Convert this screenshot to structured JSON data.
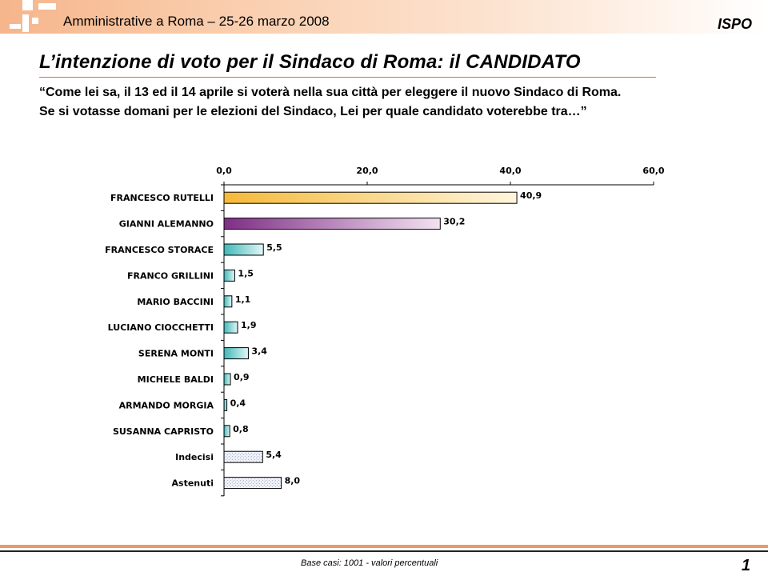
{
  "header": {
    "meeting_title": "Amministrative a Roma – 25-26 marzo 2008",
    "brand": "ISPO"
  },
  "page_title": "L’intenzione di voto per il Sindaco di Roma: il CANDIDATO",
  "question": {
    "line1": "“Come lei sa, il 13 ed il 14 aprile  si voterà nella sua città per eleggere il nuovo Sindaco di Roma.",
    "line2": "Se si votasse domani per le elezioni del Sindaco, Lei per quale candidato voterebbe tra…”"
  },
  "chart_data": {
    "type": "bar",
    "orientation": "horizontal",
    "categories": [
      "FRANCESCO RUTELLI",
      "GIANNI ALEMANNO",
      "FRANCESCO STORACE",
      "FRANCO GRILLINI",
      "MARIO BACCINI",
      "LUCIANO CIOCCHETTI",
      "SERENA MONTI",
      "MICHELE BALDI",
      "ARMANDO MORGIA",
      "SUSANNA CAPRISTO",
      "Indecisi",
      "Astenuti"
    ],
    "values": [
      40.9,
      30.2,
      5.5,
      1.5,
      1.1,
      1.9,
      3.4,
      0.9,
      0.4,
      0.8,
      5.4,
      8.0
    ],
    "value_labels": [
      "40,9",
      "30,2",
      "5,5",
      "1,5",
      "1,1",
      "1,9",
      "3,4",
      "0,9",
      "0,4",
      "0,8",
      "5,4",
      "8,0"
    ],
    "xlim": [
      0,
      60
    ],
    "ticks": [
      0,
      20,
      40,
      60
    ],
    "tick_labels": [
      "0,0",
      "20,0",
      "40,0",
      "60,0"
    ],
    "axis_position": "top",
    "grid": false,
    "bar_colors": [
      "#f5c04a",
      "#8e3f8f",
      "#66cccc",
      "#66cccc",
      "#66cccc",
      "#66cccc",
      "#66cccc",
      "#66cccc",
      "#66cccc",
      "#66cccc",
      "#b7bfd6",
      "#b7bfd6"
    ]
  },
  "footer": {
    "note": "Base casi: 1001 - valori percentuali",
    "page_number": "1"
  }
}
